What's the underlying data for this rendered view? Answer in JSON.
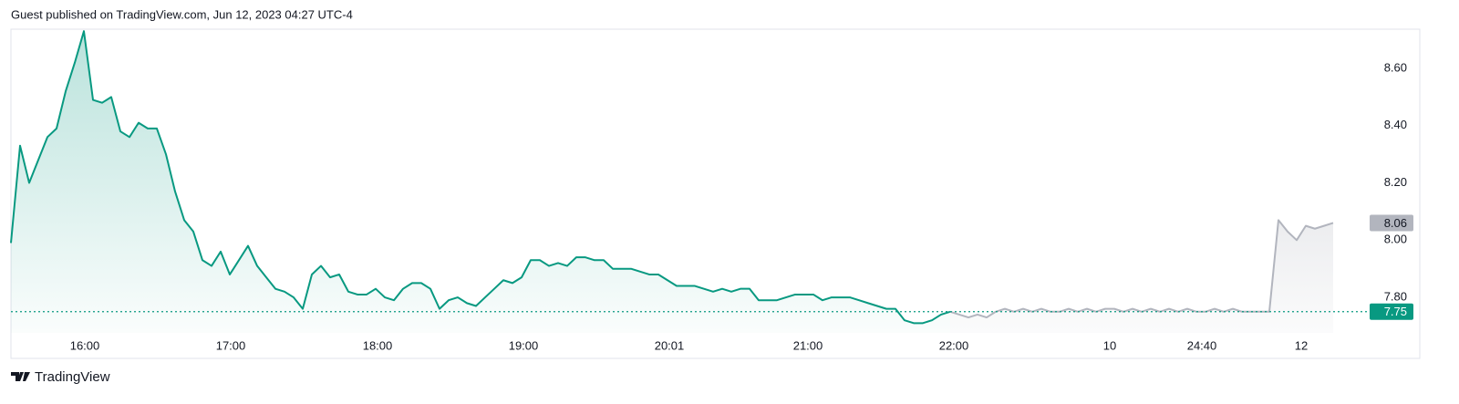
{
  "header": {
    "text": "Guest published on TradingView.com, Jun 12, 2023 04:27 UTC-4"
  },
  "footer": {
    "brand": "TradingView"
  },
  "chart_data": {
    "type": "line",
    "xlim": [
      0,
      149
    ],
    "ylim": [
      7.676,
      8.737
    ],
    "xticks": [
      {
        "value": 8.1,
        "label": "16:00"
      },
      {
        "value": 24.1,
        "label": "17:00"
      },
      {
        "value": 40.2,
        "label": "18:00"
      },
      {
        "value": 56.2,
        "label": "19:00"
      },
      {
        "value": 72.2,
        "label": "20:01"
      },
      {
        "value": 87.4,
        "label": "21:00"
      },
      {
        "value": 103.4,
        "label": "22:00"
      },
      {
        "value": 120.5,
        "label": "10"
      },
      {
        "value": 130.6,
        "label": "24:40"
      },
      {
        "value": 141.5,
        "label": "12"
      }
    ],
    "yticks": [
      {
        "value": 7.8,
        "label": "7.80"
      },
      {
        "value": 8.0,
        "label": "8.00"
      },
      {
        "value": 8.2,
        "label": "8.20"
      },
      {
        "value": 8.4,
        "label": "8.40"
      },
      {
        "value": 8.6,
        "label": "8.60"
      }
    ],
    "series": [
      {
        "color": "#089981",
        "values": [
          7.99,
          8.33,
          8.2,
          8.28,
          8.36,
          8.39,
          8.52,
          8.62,
          8.73,
          8.49,
          8.48,
          8.5,
          8.38,
          8.36,
          8.41,
          8.39,
          8.39,
          8.3,
          8.17,
          8.07,
          8.03,
          7.93,
          7.91,
          7.96,
          7.88,
          7.93,
          7.98,
          7.91,
          7.87,
          7.83,
          7.82,
          7.8,
          7.76,
          7.88,
          7.91,
          7.87,
          7.88,
          7.82,
          7.81,
          7.81,
          7.83,
          7.8,
          7.79,
          7.83,
          7.85,
          7.85,
          7.83,
          7.76,
          7.79,
          7.8,
          7.78,
          7.77,
          7.8,
          7.83,
          7.86,
          7.85,
          7.87,
          7.93,
          7.93,
          7.91,
          7.92,
          7.91,
          7.94,
          7.94,
          7.93,
          7.93,
          7.9,
          7.9,
          7.9,
          7.89,
          7.88,
          7.88,
          7.86,
          7.84,
          7.84,
          7.84,
          7.83,
          7.82,
          7.83,
          7.82,
          7.83,
          7.83,
          7.79,
          7.79,
          7.79,
          7.8,
          7.81,
          7.81,
          7.81,
          7.79,
          7.8,
          7.8,
          7.8,
          7.79,
          7.78,
          7.77,
          7.76,
          7.76,
          7.72,
          7.71,
          7.71,
          7.72,
          7.74,
          7.75,
          null,
          null,
          null,
          null,
          null,
          null,
          null,
          null,
          null,
          null,
          null,
          null,
          null,
          null,
          null,
          null,
          null,
          null,
          null,
          null,
          null,
          null,
          null,
          null,
          null,
          null,
          null,
          null,
          null,
          null,
          null,
          null,
          null,
          null,
          null,
          null,
          null,
          null,
          null,
          null,
          null,
          null,
          null,
          null,
          null
        ]
      },
      {
        "color": "#b2b5be",
        "values": [
          null,
          null,
          null,
          null,
          null,
          null,
          null,
          null,
          null,
          null,
          null,
          null,
          null,
          null,
          null,
          null,
          null,
          null,
          null,
          null,
          null,
          null,
          null,
          null,
          null,
          null,
          null,
          null,
          null,
          null,
          null,
          null,
          null,
          null,
          null,
          null,
          null,
          null,
          null,
          null,
          null,
          null,
          null,
          null,
          null,
          null,
          null,
          null,
          null,
          null,
          null,
          null,
          null,
          null,
          null,
          null,
          null,
          null,
          null,
          null,
          null,
          null,
          null,
          null,
          null,
          null,
          null,
          null,
          null,
          null,
          null,
          null,
          null,
          null,
          null,
          null,
          null,
          null,
          null,
          null,
          null,
          null,
          null,
          null,
          null,
          null,
          null,
          null,
          null,
          null,
          null,
          null,
          null,
          null,
          null,
          null,
          null,
          null,
          null,
          null,
          null,
          null,
          null,
          7.75,
          7.74,
          7.73,
          7.74,
          7.73,
          7.75,
          7.76,
          7.75,
          7.76,
          7.75,
          7.76,
          7.75,
          7.75,
          7.76,
          7.75,
          7.76,
          7.75,
          7.76,
          7.76,
          7.75,
          7.76,
          7.75,
          7.76,
          7.75,
          7.76,
          7.75,
          7.76,
          7.75,
          7.75,
          7.76,
          7.75,
          7.76,
          7.75,
          7.75,
          7.75,
          7.75,
          8.07,
          8.03,
          8.0,
          8.05,
          8.04,
          8.05,
          8.06
        ]
      }
    ],
    "price_lines": [
      {
        "value": 8.06,
        "color": "#b2b5be",
        "text_color": "#131722",
        "dashed": false
      },
      {
        "value": 7.75,
        "color": "#089981",
        "text_color": "#ffffff",
        "dashed": true
      }
    ]
  }
}
